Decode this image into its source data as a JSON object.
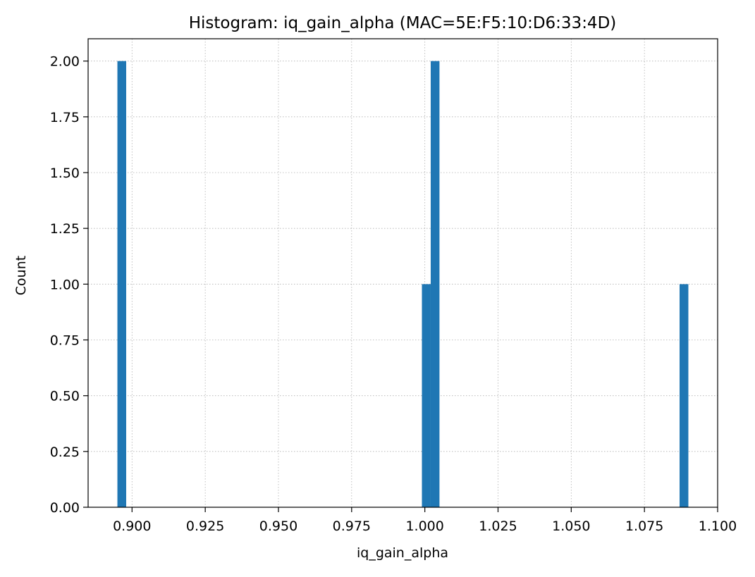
{
  "chart_data": {
    "type": "bar",
    "subtype": "histogram",
    "title": "Histogram: iq_gain_alpha (MAC=5E:F5:10:D6:33:4D)",
    "xlabel": "iq_gain_alpha",
    "ylabel": "Count",
    "xlim": [
      0.885,
      1.1
    ],
    "ylim": [
      0,
      2.1
    ],
    "grid": true,
    "bar_color": "#1f77b4",
    "bin_width": 0.003,
    "bins": [
      {
        "x_start": 0.895,
        "x_end": 0.898,
        "count": 2
      },
      {
        "x_start": 0.999,
        "x_end": 1.002,
        "count": 1
      },
      {
        "x_start": 1.002,
        "x_end": 1.005,
        "count": 2
      },
      {
        "x_start": 1.087,
        "x_end": 1.09,
        "count": 1
      }
    ],
    "x_ticks": [
      {
        "value": 0.9,
        "label": "0.900"
      },
      {
        "value": 0.925,
        "label": "0.925"
      },
      {
        "value": 0.95,
        "label": "0.950"
      },
      {
        "value": 0.975,
        "label": "0.975"
      },
      {
        "value": 1.0,
        "label": "1.000"
      },
      {
        "value": 1.025,
        "label": "1.025"
      },
      {
        "value": 1.05,
        "label": "1.050"
      },
      {
        "value": 1.075,
        "label": "1.075"
      },
      {
        "value": 1.1,
        "label": "1.100"
      }
    ],
    "y_ticks": [
      {
        "value": 0.0,
        "label": "0.00"
      },
      {
        "value": 0.25,
        "label": "0.25"
      },
      {
        "value": 0.5,
        "label": "0.50"
      },
      {
        "value": 0.75,
        "label": "0.75"
      },
      {
        "value": 1.0,
        "label": "1.00"
      },
      {
        "value": 1.25,
        "label": "1.25"
      },
      {
        "value": 1.5,
        "label": "1.50"
      },
      {
        "value": 1.75,
        "label": "1.75"
      },
      {
        "value": 2.0,
        "label": "2.00"
      }
    ]
  }
}
